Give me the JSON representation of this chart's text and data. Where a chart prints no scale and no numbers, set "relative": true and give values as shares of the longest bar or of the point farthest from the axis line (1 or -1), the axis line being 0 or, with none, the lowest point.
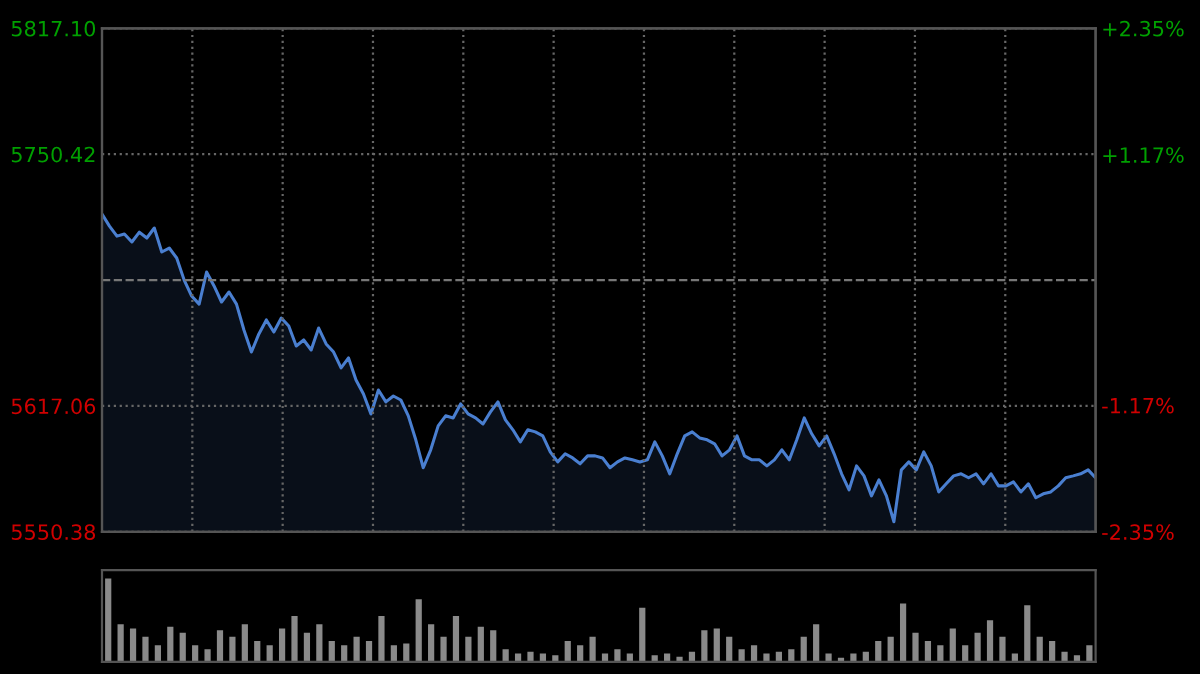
{
  "chart_data": [
    {
      "type": "area",
      "categories": [
        null,
        null,
        null,
        null,
        null,
        null,
        null,
        null,
        null,
        null,
        null,
        null,
        null,
        null,
        null,
        null,
        null,
        null,
        null,
        null,
        null,
        null,
        null,
        null,
        null,
        null,
        null,
        null,
        null,
        null,
        null,
        null,
        null,
        null,
        null,
        null,
        null,
        null,
        null,
        null,
        null,
        null,
        null,
        null,
        null,
        null,
        null,
        null,
        null,
        null,
        null,
        null,
        null,
        null,
        null,
        null,
        null,
        null,
        null,
        null,
        null,
        null,
        null,
        null,
        null,
        null,
        null,
        null,
        null,
        null,
        null,
        null,
        null,
        null,
        null,
        null,
        null,
        null,
        null,
        null,
        null,
        null,
        null,
        null,
        null,
        null,
        null,
        null,
        null,
        null,
        null,
        null,
        null,
        null,
        null,
        null,
        null,
        null,
        null,
        null,
        null,
        null,
        null,
        null,
        null,
        null,
        null,
        null,
        null,
        null,
        null,
        null,
        null,
        null,
        null,
        null,
        null,
        null,
        null,
        null,
        null,
        null,
        null,
        null,
        null,
        null,
        null,
        null,
        null,
        null,
        null,
        null,
        null,
        null
      ],
      "series": [
        {
          "color": "#4a7fd0",
          "values": [
            5718.7,
            5712.3,
            5707.0,
            5708.1,
            5703.9,
            5709.1,
            5706.0,
            5711.3,
            5698.6,
            5700.7,
            5695.4,
            5683.7,
            5675.3,
            5671.0,
            5688.0,
            5680.6,
            5672.1,
            5677.4,
            5671.0,
            5657.3,
            5645.6,
            5655.2,
            5662.6,
            5656.2,
            5663.6,
            5659.4,
            5648.8,
            5652.0,
            5646.7,
            5658.3,
            5649.9,
            5645.6,
            5637.2,
            5642.5,
            5630.8,
            5623.4,
            5612.8,
            5625.5,
            5619.2,
            5622.3,
            5620.2,
            5611.8,
            5599.1,
            5584.3,
            5593.8,
            5606.5,
            5611.8,
            5610.7,
            5618.1,
            5612.8,
            5610.7,
            5607.5,
            5613.9,
            5619.2,
            5609.7,
            5604.4,
            5598.0,
            5604.4,
            5603.3,
            5601.2,
            5592.7,
            5587.4,
            5591.7,
            5589.5,
            5586.4,
            5590.6,
            5590.6,
            5589.5,
            5584.3,
            5587.4,
            5589.5,
            5588.5,
            5587.4,
            5588.5,
            5598.0,
            5590.6,
            5581.1,
            5591.7,
            5601.2,
            5603.3,
            5600.1,
            5599.1,
            5597.0,
            5590.6,
            5593.8,
            5601.2,
            5590.6,
            5588.5,
            5588.5,
            5585.3,
            5588.5,
            5593.8,
            5588.5,
            5599.1,
            5610.7,
            5602.3,
            5595.9,
            5601.2,
            5591.7,
            5581.1,
            5572.6,
            5585.3,
            5580.0,
            5569.4,
            5577.9,
            5569.4,
            5555.7,
            5583.2,
            5587.4,
            5583.2,
            5592.7,
            5585.3,
            5571.5,
            5575.8,
            5580.0,
            5581.1,
            5579.0,
            5581.1,
            5575.8,
            5581.1,
            5574.7,
            5574.7,
            5576.8,
            5571.5,
            5575.8,
            5568.4,
            5570.5,
            5571.5,
            5574.7,
            5579.0,
            5580.0,
            5581.1,
            5583.2,
            5579.0
          ]
        }
      ],
      "ylim": [
        5550.38,
        5817.1
      ],
      "yticks": [
        {
          "value": 5550.38,
          "label": "5550.38"
        },
        {
          "value": 5617.06,
          "label": "5617.06"
        },
        {
          "value": 5750.42,
          "label": "5750.42"
        },
        {
          "value": 5817.1,
          "label": "5817.10"
        }
      ],
      "y2lim": [
        -2.35,
        2.35
      ],
      "y2ticks": [
        {
          "value": -2.35,
          "label": "-2.35%"
        },
        {
          "value": -1.17,
          "label": "-1.17%"
        },
        {
          "value": 1.17,
          "label": "+1.17%"
        },
        {
          "value": 2.35,
          "label": "+2.35%"
        }
      ],
      "ref_lines": [
        {
          "axis": "y",
          "value": 5683.74,
          "color": "#777777",
          "line_style": "dashed"
        }
      ],
      "grid": true,
      "tick_labels": "y"
    },
    {
      "type": "bar",
      "relative": true,
      "color": "#8a8a8a",
      "categories": [
        null,
        null,
        null,
        null,
        null,
        null,
        null,
        null,
        null,
        null,
        null,
        null,
        null,
        null,
        null,
        null,
        null,
        null,
        null,
        null,
        null,
        null,
        null,
        null,
        null,
        null,
        null,
        null,
        null,
        null,
        null,
        null,
        null,
        null,
        null,
        null,
        null,
        null,
        null,
        null,
        null,
        null,
        null,
        null,
        null,
        null,
        null,
        null,
        null,
        null,
        null,
        null,
        null,
        null,
        null,
        null,
        null,
        null,
        null,
        null,
        null,
        null,
        null,
        null,
        null,
        null,
        null,
        null,
        null,
        null,
        null,
        null,
        null,
        null,
        null,
        null,
        null,
        null,
        null,
        null
      ],
      "values": [
        1.0,
        0.45,
        0.4,
        0.3,
        0.2,
        0.42,
        0.35,
        0.2,
        0.15,
        0.38,
        0.3,
        0.45,
        0.25,
        0.2,
        0.4,
        0.55,
        0.35,
        0.45,
        0.25,
        0.2,
        0.3,
        0.25,
        0.55,
        0.2,
        0.22,
        0.75,
        0.45,
        0.3,
        0.55,
        0.3,
        0.42,
        0.38,
        0.15,
        0.1,
        0.12,
        0.1,
        0.08,
        0.25,
        0.2,
        0.3,
        0.1,
        0.15,
        0.1,
        0.65,
        0.08,
        0.1,
        0.06,
        0.12,
        0.38,
        0.4,
        0.3,
        0.15,
        0.2,
        0.1,
        0.12,
        0.15,
        0.3,
        0.45,
        0.1,
        0.05,
        0.1,
        0.12,
        0.25,
        0.3,
        0.7,
        0.35,
        0.25,
        0.2,
        0.4,
        0.2,
        0.35,
        0.5,
        0.3,
        0.1,
        0.68,
        0.3,
        0.25,
        0.12,
        0.08,
        0.2
      ]
    }
  ]
}
